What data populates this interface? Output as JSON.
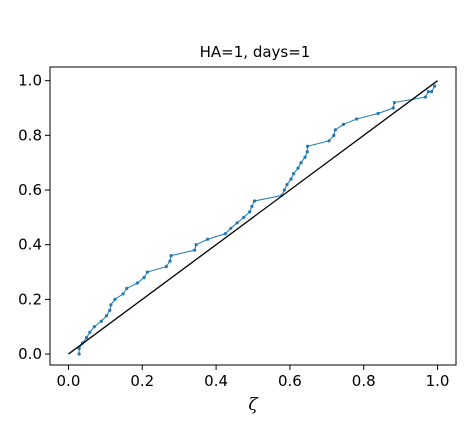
{
  "chart_data": {
    "type": "line",
    "title": "HA=1, days=1",
    "xlabel": "ζ",
    "ylabel": "",
    "xlim": [
      -0.05,
      1.05
    ],
    "ylim": [
      -0.04,
      1.05
    ],
    "xticks": [
      "0.0",
      "0.2",
      "0.4",
      "0.6",
      "0.8",
      "1.0"
    ],
    "xtick_values": [
      0.0,
      0.2,
      0.4,
      0.6,
      0.8,
      1.0
    ],
    "yticks": [
      "0.0",
      "0.2",
      "0.4",
      "0.6",
      "0.8",
      "1.0"
    ],
    "ytick_values": [
      0.0,
      0.2,
      0.4,
      0.6,
      0.8,
      1.0
    ],
    "grid": false,
    "series": [
      {
        "color": "#1f77b4",
        "marker": "dot",
        "x": [
          0.029,
          0.029,
          0.038,
          0.049,
          0.058,
          0.07,
          0.089,
          0.103,
          0.112,
          0.115,
          0.126,
          0.148,
          0.158,
          0.187,
          0.205,
          0.214,
          0.265,
          0.275,
          0.278,
          0.342,
          0.346,
          0.377,
          0.425,
          0.44,
          0.457,
          0.475,
          0.491,
          0.497,
          0.504,
          0.578,
          0.585,
          0.592,
          0.603,
          0.61,
          0.622,
          0.63,
          0.641,
          0.647,
          0.648,
          0.706,
          0.719,
          0.723,
          0.745,
          0.781,
          0.839,
          0.88,
          0.883,
          0.967,
          0.975,
          0.984,
          0.992
        ],
        "y": [
          0.0,
          0.02,
          0.04,
          0.06,
          0.08,
          0.1,
          0.12,
          0.14,
          0.16,
          0.18,
          0.2,
          0.22,
          0.24,
          0.26,
          0.28,
          0.3,
          0.32,
          0.34,
          0.36,
          0.38,
          0.4,
          0.42,
          0.44,
          0.46,
          0.48,
          0.5,
          0.52,
          0.54,
          0.56,
          0.58,
          0.6,
          0.62,
          0.64,
          0.66,
          0.68,
          0.7,
          0.72,
          0.74,
          0.76,
          0.78,
          0.8,
          0.82,
          0.84,
          0.86,
          0.88,
          0.9,
          0.92,
          0.94,
          0.96,
          0.96,
          0.98
        ]
      },
      {
        "color": "#000000",
        "marker": "none",
        "x": [
          0.0,
          1.0
        ],
        "y": [
          0.0,
          1.0
        ]
      }
    ]
  }
}
